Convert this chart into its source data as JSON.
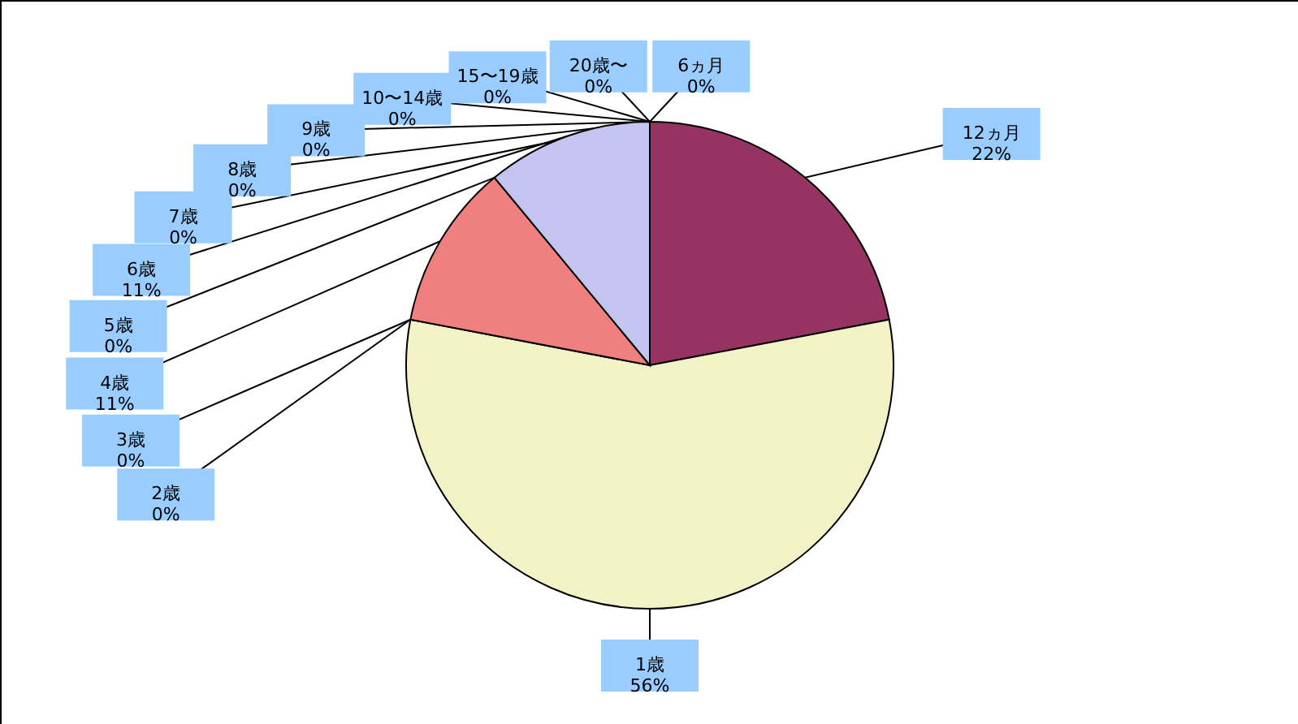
{
  "chart_data": {
    "type": "pie",
    "categories": [
      "6ヵ月",
      "12ヵ月",
      "1歳",
      "2歳",
      "3歳",
      "4歳",
      "5歳",
      "6歳",
      "7歳",
      "8歳",
      "9歳",
      "10〜14歳",
      "15〜19歳",
      "20歳〜"
    ],
    "values": [
      0,
      22,
      56,
      0,
      0,
      11,
      0,
      11,
      0,
      0,
      0,
      0,
      0,
      0
    ],
    "value_labels": [
      "0%",
      "22%",
      "56%",
      "0%",
      "0%",
      "11%",
      "0%",
      "11%",
      "0%",
      "0%",
      "0%",
      "0%",
      "0%",
      "0%"
    ],
    "colors": [
      "#ffffff",
      "#953462",
      "#f2f2c6",
      "#ff99cc",
      "#9999ff",
      "#f07f7f",
      "#336699",
      "#c4c4f0",
      "#0066cc",
      "#ccccff",
      "#000080",
      "#ff00ff",
      "#ffff00",
      "#00ffff"
    ]
  }
}
